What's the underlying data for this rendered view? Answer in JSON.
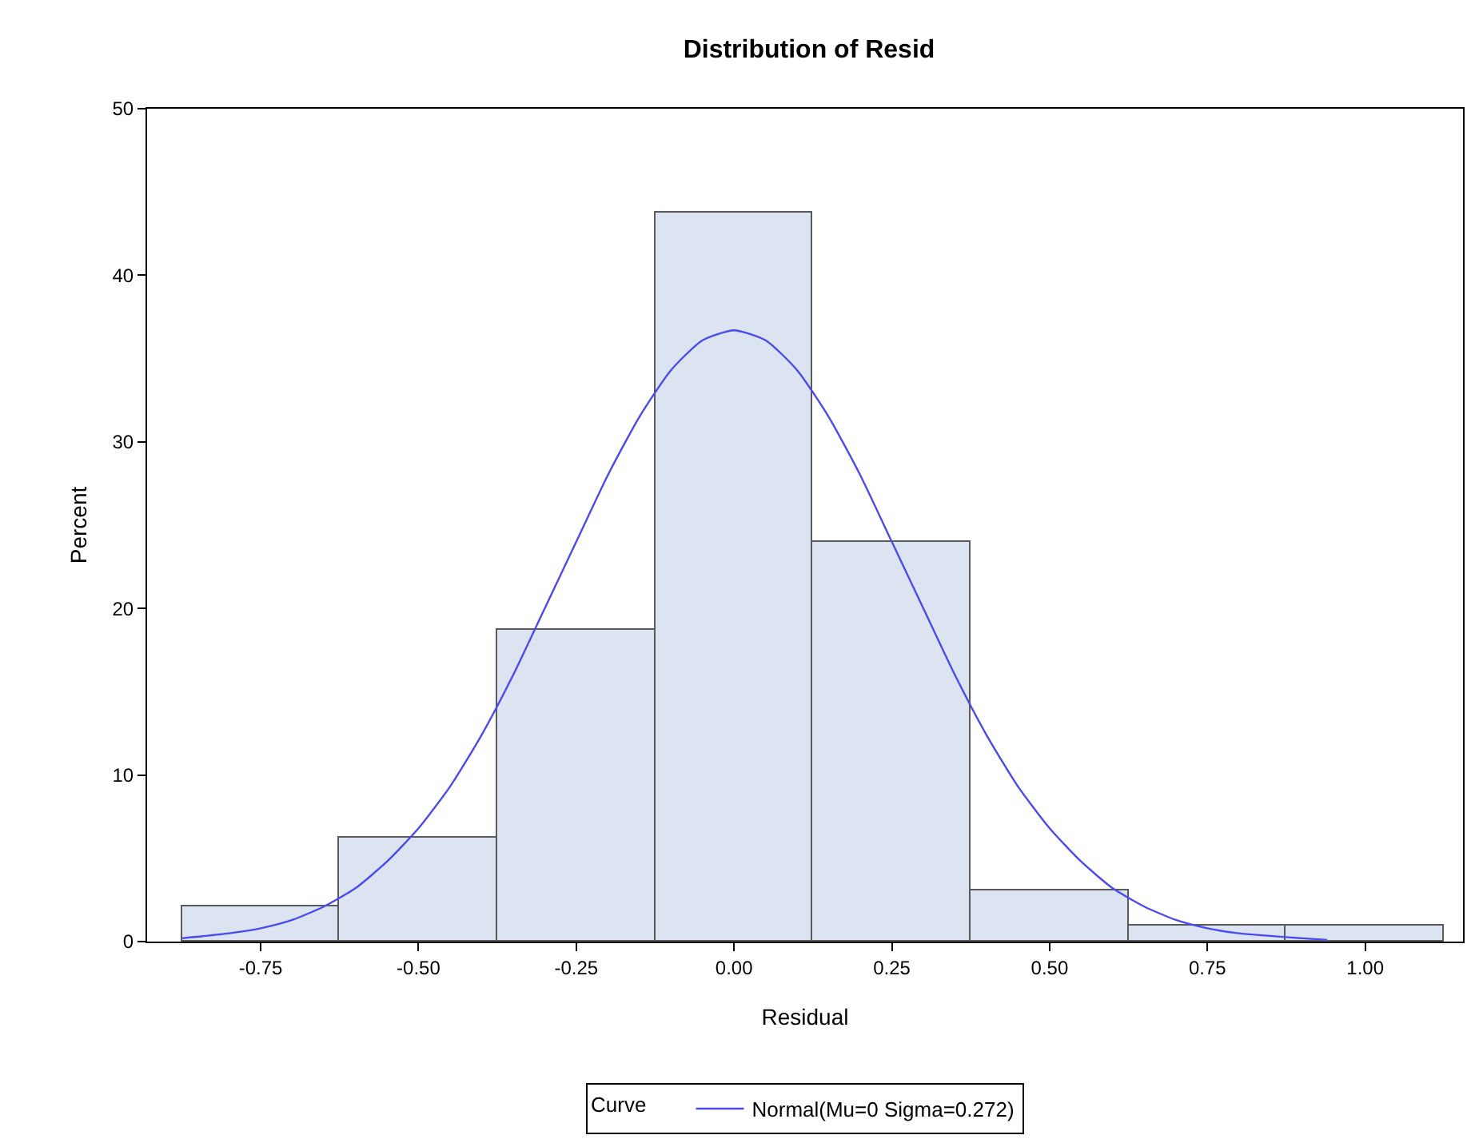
{
  "chart_data": {
    "type": "histogram",
    "title": "Distribution of Resid",
    "xlabel": "Residual",
    "ylabel": "Percent",
    "legend_title": "Curve",
    "legend": "bottom",
    "grid": false,
    "bins": [
      -0.875,
      -0.625,
      -0.375,
      -0.125,
      0.125,
      0.375,
      0.625,
      0.875,
      1.125
    ],
    "values": [
      2.1,
      6.2,
      18.7,
      43.8,
      24.0,
      3.1,
      1.0,
      1.0
    ],
    "color": "#dbe4f0",
    "series": [
      {
        "type": "line",
        "name": "Normal(Mu=0 Sigma=0.272)",
        "color": "#4a4af0",
        "x": [
          -0.875,
          -0.8,
          -0.75,
          -0.7,
          -0.65,
          -0.6,
          -0.55,
          -0.5,
          -0.45,
          -0.4,
          -0.35,
          -0.3,
          -0.25,
          -0.2,
          -0.15,
          -0.1,
          -0.05,
          0,
          0.05,
          0.1,
          0.15,
          0.2,
          0.25,
          0.3,
          0.35,
          0.4,
          0.45,
          0.5,
          0.55,
          0.6,
          0.65,
          0.7,
          0.75,
          0.8,
          0.9,
          0.94
        ],
        "values": [
          0.2,
          0.5,
          0.8,
          1.3,
          2.1,
          3.2,
          4.8,
          6.8,
          9.3,
          12.4,
          16.0,
          20.0,
          24.0,
          28.0,
          31.5,
          34.3,
          36.1,
          36.7,
          36.1,
          34.3,
          31.5,
          28.0,
          24.0,
          20.0,
          16.0,
          12.4,
          9.3,
          6.8,
          4.8,
          3.2,
          2.1,
          1.3,
          0.8,
          0.5,
          0.2,
          0.1
        ]
      }
    ],
    "xlim": [
      -0.93,
      1.155
    ],
    "xticks": [
      {
        "value": -0.75,
        "label": "-0.75"
      },
      {
        "value": -0.5,
        "label": "-0.50"
      },
      {
        "value": -0.25,
        "label": "-0.25"
      },
      {
        "value": 0,
        "label": "0.00"
      },
      {
        "value": 0.25,
        "label": "0.25"
      },
      {
        "value": 0.5,
        "label": "0.50"
      },
      {
        "value": 0.75,
        "label": "0.75"
      },
      {
        "value": 1,
        "label": "1.00"
      }
    ],
    "ylim": [
      0,
      50
    ],
    "yticks": [
      0,
      10,
      20,
      30,
      40,
      50
    ]
  }
}
